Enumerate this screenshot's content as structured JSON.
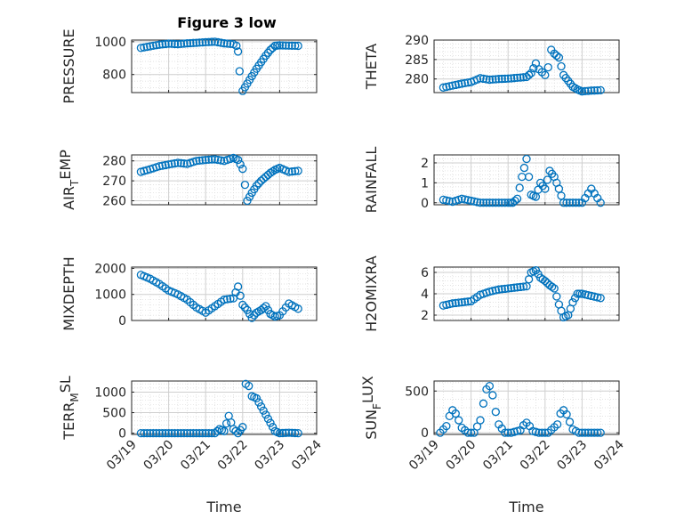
{
  "figure_title": "Figure 3 low",
  "colors": {
    "marker": "#0072BD",
    "grid": "#d9d9d9",
    "axis": "#262626"
  },
  "chart_data": [
    {
      "type": "scatter",
      "title": "Figure 3 low",
      "ylabel": "PRESSURE",
      "xlabel": "",
      "xlim": [
        "03/19",
        "03/24"
      ],
      "ylim": [
        690,
        1010
      ],
      "yticks": [
        800,
        1000
      ],
      "grid": true,
      "x": [
        "03/19 06:00",
        "03/19 12:00",
        "03/19 18:00",
        "03/20 00:00",
        "03/20 06:00",
        "03/20 12:00",
        "03/20 18:00",
        "03/21 00:00",
        "03/21 06:00",
        "03/21 12:00",
        "03/21 18:00",
        "03/21 20:00",
        "03/21 21:00",
        "03/21 22:00",
        "03/22 00:00",
        "03/22 03:00",
        "03/22 06:00",
        "03/22 09:00",
        "03/22 12:00",
        "03/22 15:00",
        "03/22 18:00",
        "03/22 21:00",
        "03/23 00:00",
        "03/23 06:00",
        "03/23 12:00"
      ],
      "y": [
        962,
        972,
        982,
        988,
        985,
        990,
        993,
        997,
        1000,
        990,
        985,
        975,
        940,
        820,
        700,
        745,
        790,
        835,
        875,
        915,
        950,
        975,
        978,
        976,
        975
      ]
    },
    {
      "type": "scatter",
      "title": "",
      "ylabel": "THETA",
      "xlabel": "",
      "xlim": [
        "03/19",
        "03/24"
      ],
      "ylim": [
        276.5,
        290
      ],
      "yticks": [
        280,
        285,
        290
      ],
      "grid": true,
      "x": [
        "03/19 06:00",
        "03/19 12:00",
        "03/19 18:00",
        "03/20 00:00",
        "03/20 06:00",
        "03/20 12:00",
        "03/20 18:00",
        "03/21 00:00",
        "03/21 06:00",
        "03/21 12:00",
        "03/21 15:00",
        "03/21 18:00",
        "03/21 20:00",
        "03/22 00:00",
        "03/22 02:00",
        "03/22 04:00",
        "03/22 06:00",
        "03/22 09:00",
        "03/22 12:00",
        "03/22 15:00",
        "03/22 18:00",
        "03/22 21:00",
        "03/23 00:00",
        "03/23 06:00",
        "03/23 12:00"
      ],
      "y": [
        277.8,
        278.3,
        278.8,
        279.2,
        280.2,
        279.8,
        280.0,
        280.1,
        280.3,
        280.5,
        281.5,
        284.0,
        282.5,
        281.0,
        283.0,
        287.5,
        286.5,
        285.5,
        281.0,
        279.5,
        278.0,
        277.3,
        276.8,
        277.0,
        277.1
      ]
    },
    {
      "type": "scatter",
      "title": "",
      "ylabel": "AIR_TEMP",
      "ylabel_main": "AIR",
      "ylabel_sub": "T",
      "ylabel_rest": "EMP",
      "xlabel": "",
      "xlim": [
        "03/19",
        "03/24"
      ],
      "ylim": [
        258,
        283
      ],
      "yticks": [
        260,
        270,
        280
      ],
      "grid": true,
      "x": [
        "03/19 06:00",
        "03/19 12:00",
        "03/19 18:00",
        "03/20 00:00",
        "03/20 06:00",
        "03/20 12:00",
        "03/20 18:00",
        "03/21 00:00",
        "03/21 06:00",
        "03/21 12:00",
        "03/21 18:00",
        "03/21 21:00",
        "03/22 00:00",
        "03/22 03:00",
        "03/22 06:00",
        "03/22 09:00",
        "03/22 12:00",
        "03/22 15:00",
        "03/22 18:00",
        "03/22 21:00",
        "03/23 00:00",
        "03/23 06:00",
        "03/23 12:00"
      ],
      "y": [
        274.5,
        275.8,
        277.3,
        278.2,
        279.0,
        278.5,
        280.0,
        280.5,
        280.8,
        280.0,
        281.5,
        280.5,
        276.0,
        260.0,
        264.0,
        267.5,
        270.0,
        272.0,
        274.0,
        275.5,
        276.5,
        274.5,
        275.0
      ]
    },
    {
      "type": "scatter",
      "title": "",
      "ylabel": "RAINFALL",
      "xlabel": "",
      "xlim": [
        "03/19",
        "03/24"
      ],
      "ylim": [
        -0.1,
        2.4
      ],
      "yticks": [
        0,
        1,
        2
      ],
      "grid": true,
      "x": [
        "03/19 06:00",
        "03/19 12:00",
        "03/19 18:00",
        "03/20 00:00",
        "03/20 06:00",
        "03/20 12:00",
        "03/20 18:00",
        "03/21 00:00",
        "03/21 03:00",
        "03/21 06:00",
        "03/21 09:00",
        "03/21 12:00",
        "03/21 15:00",
        "03/21 18:00",
        "03/21 21:00",
        "03/22 00:00",
        "03/22 03:00",
        "03/22 06:00",
        "03/22 09:00",
        "03/22 12:00",
        "03/22 18:00",
        "03/23 00:00",
        "03/23 06:00",
        "03/23 12:00"
      ],
      "y": [
        0.15,
        0.05,
        0.2,
        0.1,
        0.0,
        0.0,
        0.0,
        0.0,
        0.0,
        0.2,
        1.3,
        2.2,
        0.4,
        0.3,
        1.0,
        0.7,
        1.6,
        1.3,
        0.7,
        0.0,
        0.0,
        0.0,
        0.7,
        0.0
      ]
    },
    {
      "type": "scatter",
      "title": "",
      "ylabel": "MIXDEPTH",
      "xlabel": "",
      "xlim": [
        "03/19",
        "03/24"
      ],
      "ylim": [
        0,
        2050
      ],
      "yticks": [
        0,
        1000,
        2000
      ],
      "grid": true,
      "x": [
        "03/19 06:00",
        "03/19 12:00",
        "03/19 18:00",
        "03/20 00:00",
        "03/20 06:00",
        "03/20 12:00",
        "03/20 18:00",
        "03/21 00:00",
        "03/21 06:00",
        "03/21 12:00",
        "03/21 18:00",
        "03/21 21:00",
        "03/22 00:00",
        "03/22 03:00",
        "03/22 06:00",
        "03/22 09:00",
        "03/22 12:00",
        "03/22 15:00",
        "03/22 18:00",
        "03/22 21:00",
        "03/23 00:00",
        "03/23 06:00",
        "03/23 12:00"
      ],
      "y": [
        1750,
        1600,
        1400,
        1150,
        1000,
        800,
        500,
        300,
        550,
        800,
        850,
        1300,
        600,
        400,
        100,
        300,
        400,
        550,
        250,
        150,
        200,
        650,
        450
      ]
    },
    {
      "type": "scatter",
      "title": "",
      "ylabel": "H2OMIXRA",
      "xlabel": "",
      "xlim": [
        "03/19",
        "03/24"
      ],
      "ylim": [
        1.5,
        6.5
      ],
      "yticks": [
        2,
        4,
        6
      ],
      "grid": true,
      "x": [
        "03/19 06:00",
        "03/19 12:00",
        "03/19 18:00",
        "03/20 00:00",
        "03/20 06:00",
        "03/20 12:00",
        "03/20 18:00",
        "03/21 00:00",
        "03/21 06:00",
        "03/21 12:00",
        "03/21 15:00",
        "03/21 18:00",
        "03/21 21:00",
        "03/22 00:00",
        "03/22 03:00",
        "03/22 06:00",
        "03/22 09:00",
        "03/22 12:00",
        "03/22 15:00",
        "03/22 18:00",
        "03/22 21:00",
        "03/23 00:00",
        "03/23 06:00",
        "03/23 12:00"
      ],
      "y": [
        2.9,
        3.1,
        3.2,
        3.3,
        3.9,
        4.2,
        4.4,
        4.5,
        4.6,
        4.7,
        6.0,
        6.2,
        5.5,
        5.2,
        4.8,
        4.5,
        3.0,
        1.8,
        2.0,
        3.2,
        4.0,
        4.0,
        3.8,
        3.6
      ]
    },
    {
      "type": "scatter",
      "title": "",
      "ylabel": "TERR_MSL",
      "ylabel_main": "TERR",
      "ylabel_sub": "M",
      "ylabel_rest": "SL",
      "xlabel": "Time",
      "xlim": [
        "03/19",
        "03/24"
      ],
      "ylim": [
        -30,
        1270
      ],
      "yticks": [
        0,
        500,
        1000
      ],
      "xticks": [
        "03/19",
        "03/20",
        "03/21",
        "03/22",
        "03/23",
        "03/24"
      ],
      "grid": true,
      "x": [
        "03/19 06:00",
        "03/19 12:00",
        "03/19 18:00",
        "03/20 00:00",
        "03/20 06:00",
        "03/20 12:00",
        "03/20 18:00",
        "03/21 00:00",
        "03/21 06:00",
        "03/21 09:00",
        "03/21 12:00",
        "03/21 15:00",
        "03/21 18:00",
        "03/21 21:00",
        "03/22 00:00",
        "03/22 02:00",
        "03/22 04:00",
        "03/22 06:00",
        "03/22 09:00",
        "03/22 12:00",
        "03/22 15:00",
        "03/22 18:00",
        "03/22 21:00",
        "03/23 00:00",
        "03/23 06:00",
        "03/23 12:00"
      ],
      "y": [
        0,
        0,
        0,
        0,
        0,
        0,
        0,
        0,
        0,
        100,
        50,
        420,
        100,
        0,
        150,
        1200,
        1150,
        900,
        850,
        650,
        450,
        250,
        50,
        0,
        10,
        0
      ]
    },
    {
      "type": "scatter",
      "title": "",
      "ylabel": "SUN_FLUX",
      "ylabel_main": "SUN",
      "ylabel_sub": "F",
      "ylabel_rest": "LUX",
      "xlabel": "Time",
      "xlim": [
        "03/19",
        "03/24"
      ],
      "ylim": [
        -20,
        620
      ],
      "yticks": [
        0,
        500
      ],
      "xticks": [
        "03/19",
        "03/20",
        "03/21",
        "03/22",
        "03/23",
        "03/24"
      ],
      "grid": true,
      "x": [
        "03/19 04:00",
        "03/19 08:00",
        "03/19 10:00",
        "03/19 12:00",
        "03/19 14:00",
        "03/19 16:00",
        "03/19 18:00",
        "03/19 22:00",
        "03/20 02:00",
        "03/20 06:00",
        "03/20 08:00",
        "03/20 10:00",
        "03/20 12:00",
        "03/20 14:00",
        "03/20 16:00",
        "03/20 18:00",
        "03/20 22:00",
        "03/21 02:00",
        "03/21 08:00",
        "03/21 10:00",
        "03/21 12:00",
        "03/21 14:00",
        "03/21 16:00",
        "03/21 20:00",
        "03/22 02:00",
        "03/22 08:00",
        "03/22 10:00",
        "03/22 12:00",
        "03/22 14:00",
        "03/22 16:00",
        "03/22 18:00",
        "03/22 22:00",
        "03/23 02:00",
        "03/23 06:00",
        "03/23 12:00"
      ],
      "y": [
        0,
        80,
        200,
        270,
        230,
        150,
        60,
        0,
        0,
        150,
        350,
        520,
        560,
        450,
        250,
        100,
        0,
        0,
        30,
        90,
        120,
        80,
        20,
        0,
        0,
        100,
        230,
        270,
        220,
        130,
        40,
        0,
        0,
        0,
        0
      ]
    }
  ]
}
